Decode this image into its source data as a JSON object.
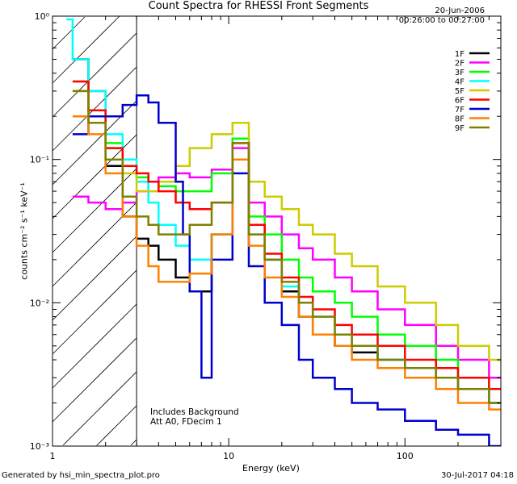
{
  "chart_data": {
    "type": "line",
    "title": "Count Spectra for RHESSI Front Segments",
    "xlabel": "Energy (keV)",
    "ylabel": "counts cm⁻² s⁻¹ keV⁻¹",
    "xscale": "log",
    "yscale": "log",
    "xlim": [
      1,
      350
    ],
    "ylim": [
      0.001,
      1
    ],
    "grid": false,
    "legend_position": "top-right",
    "date": "20-Jun-2006",
    "time_range": "00:26:00 to 00:27:00",
    "annotations": [
      "Includes Background",
      "Att A0, FDecim 1"
    ],
    "hatched_region_xmax": 3,
    "series": [
      {
        "name": "1F",
        "color": "#000000",
        "x": [
          1.3,
          1.6,
          2.0,
          2.5,
          3.0,
          3.5,
          4.0,
          5.0,
          6.0,
          8.0,
          10.5,
          13,
          16,
          20,
          25,
          30,
          40,
          50,
          70,
          100,
          150,
          200,
          300
        ],
        "y": [
          0.5,
          0.3,
          0.09,
          0.04,
          0.028,
          0.025,
          0.02,
          0.015,
          0.012,
          0.03,
          0.1,
          0.035,
          0.02,
          0.012,
          0.008,
          0.006,
          0.005,
          0.0045,
          0.004,
          0.0035,
          0.003,
          0.0025,
          0.002
        ]
      },
      {
        "name": "2F",
        "color": "#ff00ff",
        "x": [
          1.3,
          1.6,
          2.0,
          2.5,
          3.0,
          3.5,
          4.0,
          5.0,
          6.0,
          8.0,
          10.5,
          13,
          16,
          20,
          25,
          30,
          40,
          50,
          70,
          100,
          150,
          200,
          300
        ],
        "y": [
          0.055,
          0.05,
          0.045,
          0.05,
          0.06,
          0.07,
          0.075,
          0.08,
          0.075,
          0.085,
          0.12,
          0.05,
          0.04,
          0.03,
          0.024,
          0.02,
          0.015,
          0.012,
          0.009,
          0.007,
          0.005,
          0.004,
          0.003
        ]
      },
      {
        "name": "3F",
        "color": "#00ff00",
        "x": [
          1.3,
          1.6,
          2.0,
          2.5,
          3.0,
          3.5,
          4.0,
          5.0,
          6.0,
          8.0,
          10.5,
          13,
          16,
          20,
          25,
          30,
          40,
          50,
          70,
          100,
          150,
          200,
          300
        ],
        "y": [
          0.3,
          0.2,
          0.13,
          0.09,
          0.075,
          0.07,
          0.065,
          0.06,
          0.06,
          0.08,
          0.14,
          0.04,
          0.03,
          0.02,
          0.015,
          0.012,
          0.01,
          0.008,
          0.006,
          0.005,
          0.004,
          0.003,
          0.0025
        ]
      },
      {
        "name": "4F",
        "color": "#00ffff",
        "x": [
          1.2,
          1.3,
          1.6,
          2.0,
          2.5,
          3.0,
          3.5,
          4.0,
          5.0,
          6.0,
          8.0,
          10.5,
          13,
          16,
          20,
          25,
          30,
          40,
          50,
          70,
          100,
          150,
          200,
          300
        ],
        "y": [
          0.95,
          0.5,
          0.3,
          0.15,
          0.1,
          0.07,
          0.05,
          0.035,
          0.025,
          0.02,
          0.03,
          0.1,
          0.03,
          0.02,
          0.013,
          0.01,
          0.008,
          0.006,
          0.005,
          0.004,
          0.0035,
          0.003,
          0.0025,
          0.002
        ]
      },
      {
        "name": "5F",
        "color": "#cccc00",
        "x": [
          1.3,
          1.6,
          2.0,
          2.5,
          3.0,
          3.5,
          4.0,
          5.0,
          6.0,
          8.0,
          10.5,
          13,
          16,
          20,
          25,
          30,
          40,
          50,
          70,
          100,
          150,
          200,
          300
        ],
        "y": [
          0.35,
          0.22,
          0.12,
          0.08,
          0.06,
          0.06,
          0.07,
          0.09,
          0.12,
          0.15,
          0.18,
          0.07,
          0.055,
          0.045,
          0.035,
          0.03,
          0.022,
          0.018,
          0.013,
          0.01,
          0.007,
          0.005,
          0.004
        ]
      },
      {
        "name": "6F",
        "color": "#ff0000",
        "x": [
          1.3,
          1.6,
          2.0,
          2.5,
          3.0,
          3.5,
          4.0,
          5.0,
          6.0,
          8.0,
          10.5,
          13,
          16,
          20,
          25,
          30,
          40,
          50,
          70,
          100,
          150,
          200,
          300
        ],
        "y": [
          0.35,
          0.22,
          0.12,
          0.09,
          0.08,
          0.07,
          0.06,
          0.05,
          0.045,
          0.05,
          0.13,
          0.035,
          0.022,
          0.015,
          0.011,
          0.009,
          0.007,
          0.006,
          0.005,
          0.004,
          0.0035,
          0.003,
          0.0025
        ]
      },
      {
        "name": "7F",
        "color": "#0000cc",
        "x": [
          1.3,
          1.6,
          2.0,
          2.5,
          3.0,
          3.5,
          4.0,
          5.0,
          5.5,
          6.0,
          7.0,
          8.0,
          10.5,
          13,
          16,
          20,
          25,
          30,
          40,
          50,
          70,
          100,
          150,
          200,
          300
        ],
        "y": [
          0.15,
          0.2,
          0.2,
          0.24,
          0.28,
          0.25,
          0.18,
          0.07,
          0.03,
          0.012,
          0.003,
          0.02,
          0.08,
          0.018,
          0.01,
          0.007,
          0.004,
          0.003,
          0.0025,
          0.002,
          0.0018,
          0.0015,
          0.0013,
          0.0012,
          0.001
        ]
      },
      {
        "name": "8F",
        "color": "#ff8000",
        "x": [
          1.3,
          1.6,
          2.0,
          2.5,
          3.0,
          3.5,
          4.0,
          5.0,
          6.0,
          8.0,
          10.5,
          13,
          16,
          20,
          25,
          30,
          40,
          50,
          70,
          100,
          150,
          200,
          300
        ],
        "y": [
          0.2,
          0.15,
          0.08,
          0.04,
          0.025,
          0.018,
          0.014,
          0.014,
          0.016,
          0.03,
          0.1,
          0.025,
          0.015,
          0.011,
          0.008,
          0.006,
          0.005,
          0.004,
          0.0035,
          0.003,
          0.0025,
          0.002,
          0.0018
        ]
      },
      {
        "name": "9F",
        "color": "#808000",
        "x": [
          1.3,
          1.6,
          2.0,
          2.5,
          3.0,
          3.5,
          4.0,
          5.0,
          6.0,
          8.0,
          10.5,
          13,
          16,
          20,
          25,
          30,
          40,
          50,
          70,
          100,
          150,
          200,
          300
        ],
        "y": [
          0.3,
          0.18,
          0.1,
          0.055,
          0.04,
          0.035,
          0.03,
          0.03,
          0.035,
          0.05,
          0.13,
          0.03,
          0.02,
          0.014,
          0.01,
          0.008,
          0.006,
          0.005,
          0.004,
          0.0035,
          0.003,
          0.0025,
          0.002
        ]
      }
    ],
    "x_ticks": [
      {
        "value": 1,
        "label": "1"
      },
      {
        "value": 10,
        "label": "10"
      },
      {
        "value": 100,
        "label": "100"
      }
    ],
    "y_ticks": [
      {
        "value": 1,
        "label": "10⁰"
      },
      {
        "value": 0.1,
        "label": "10⁻¹"
      },
      {
        "value": 0.01,
        "label": "10⁻²"
      },
      {
        "value": 0.001,
        "label": "10⁻³"
      }
    ]
  },
  "footer": {
    "generated_by": "Generated by hsi_min_spectra_plot.pro",
    "timestamp": "30-Jul-2017 04:18"
  }
}
